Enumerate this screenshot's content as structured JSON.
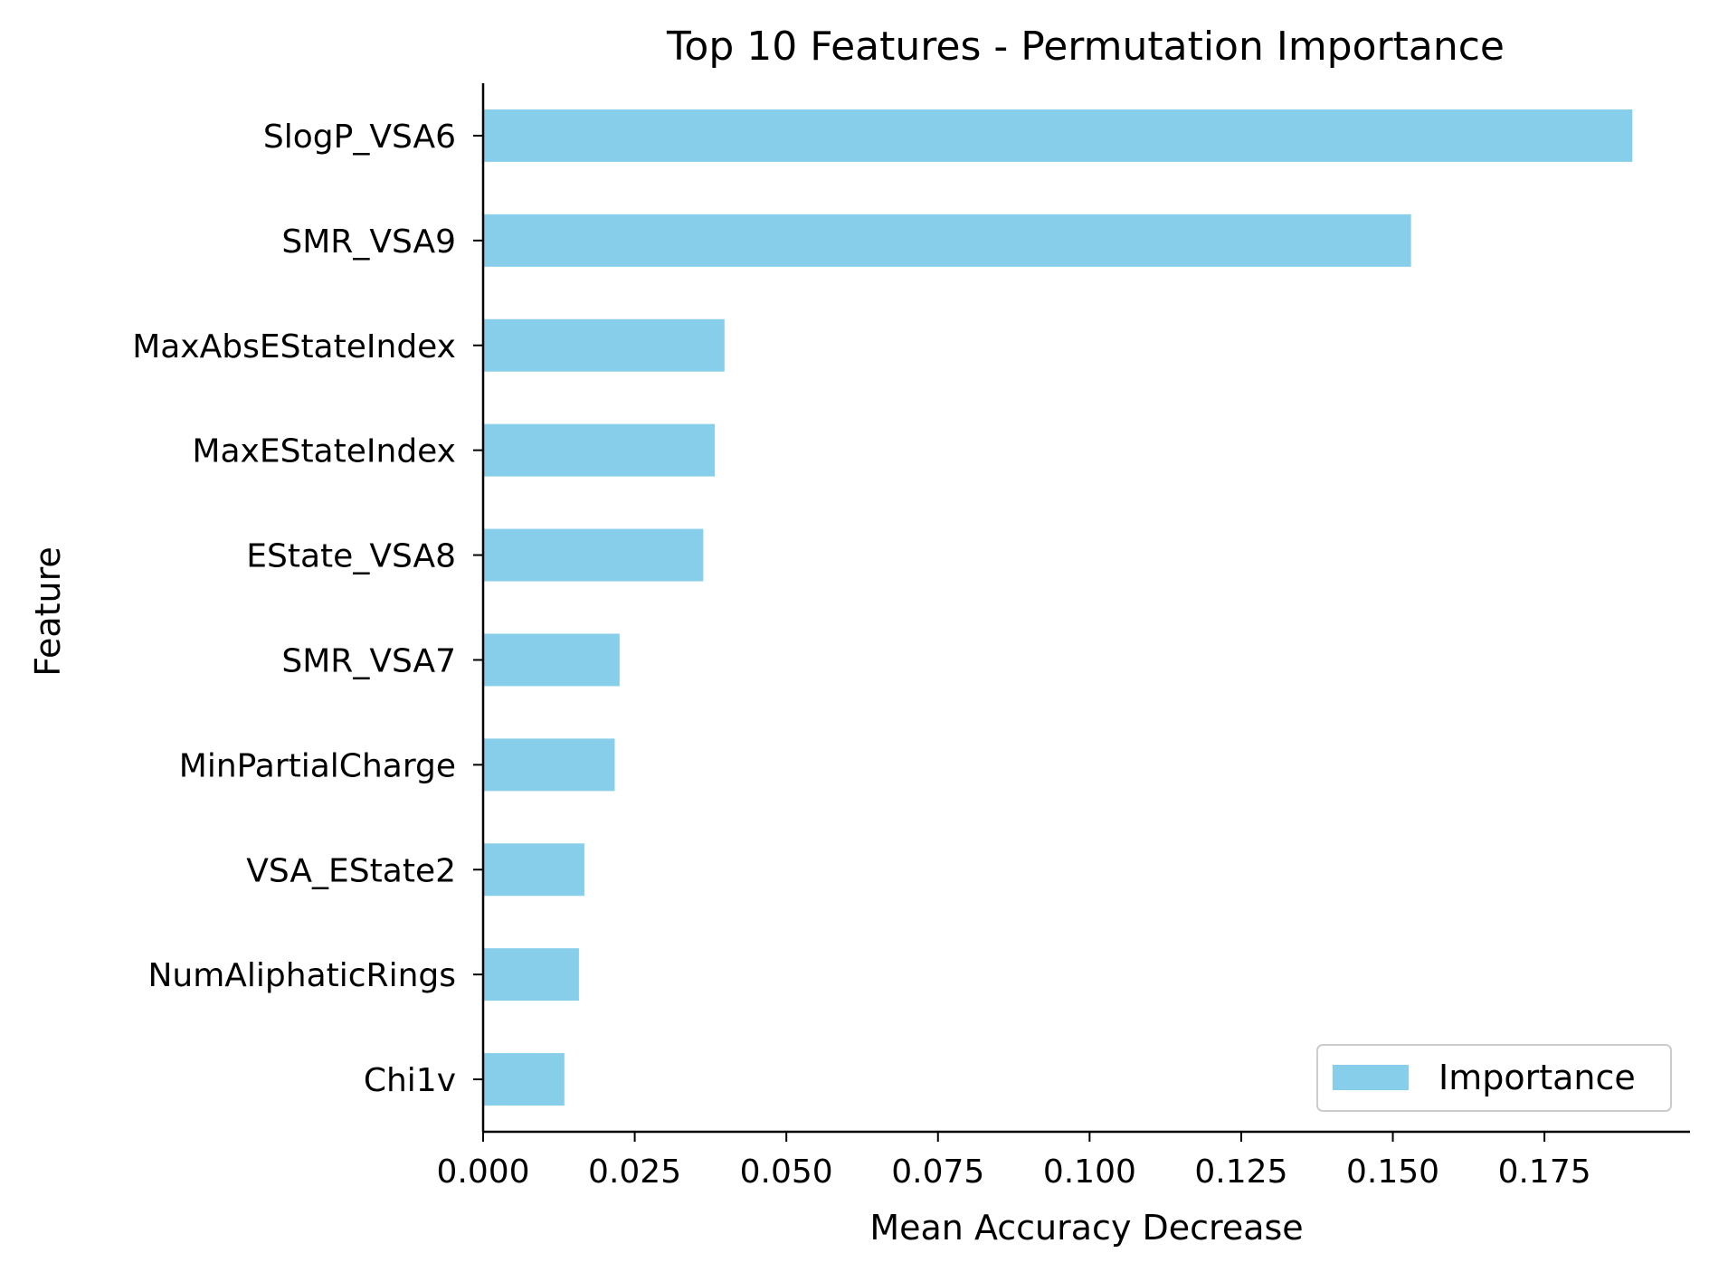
{
  "chart_data": {
    "type": "bar",
    "orientation": "horizontal",
    "title": "Top 10 Features - Permutation Importance",
    "xlabel": "Mean Accuracy Decrease",
    "ylabel": "Feature",
    "xlim": [
      0,
      0.199
    ],
    "xticks": [
      0.0,
      0.025,
      0.05,
      0.075,
      0.1,
      0.125,
      0.15,
      0.175
    ],
    "xtick_labels": [
      "0.000",
      "0.025",
      "0.050",
      "0.075",
      "0.100",
      "0.125",
      "0.150",
      "0.175"
    ],
    "categories": [
      "SlogP_VSA6",
      "SMR_VSA9",
      "MaxAbsEStateIndex",
      "MaxEStateIndex",
      "EState_VSA8",
      "SMR_VSA7",
      "MinPartialCharge",
      "VSA_EState2",
      "NumAliphaticRings",
      "Chi1v"
    ],
    "series": [
      {
        "name": "Importance",
        "color": "#87CEEB",
        "values": [
          0.1895,
          0.153,
          0.0398,
          0.0382,
          0.0363,
          0.0225,
          0.0217,
          0.0167,
          0.0158,
          0.0134
        ]
      }
    ],
    "legend": {
      "placement": "lower-right",
      "entries": [
        "Importance"
      ]
    },
    "grid": false
  }
}
